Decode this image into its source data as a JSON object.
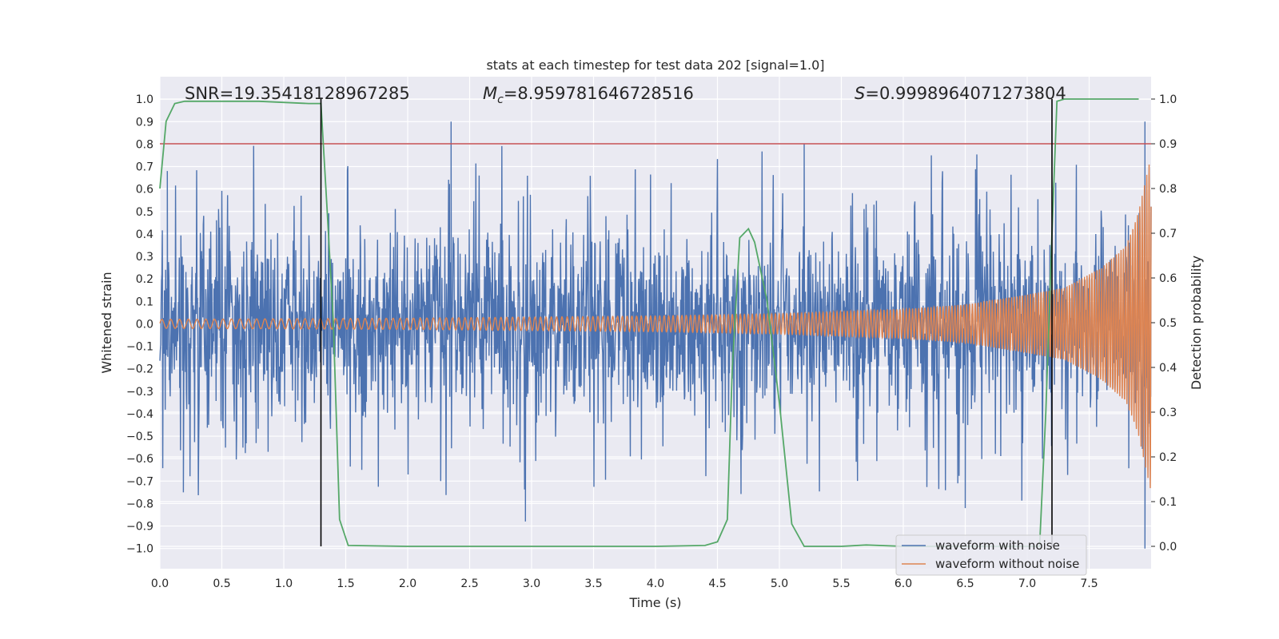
{
  "chart_data": {
    "type": "line",
    "title": "stats at each timestep for test data 202 [signal=1.0]",
    "xlabel": "Time (s)",
    "ylabel": "Whitened strain",
    "y2label": "Detection probability",
    "xlim": [
      0.0,
      8.0
    ],
    "ylim": [
      -1.09,
      1.1
    ],
    "y2lim": [
      -0.05,
      1.05
    ],
    "xticks": [
      0.0,
      0.5,
      1.0,
      1.5,
      2.0,
      2.5,
      3.0,
      3.5,
      4.0,
      4.5,
      5.0,
      5.5,
      6.0,
      6.5,
      7.0,
      7.5
    ],
    "xtick_labels": [
      "0.0",
      "0.5",
      "1.0",
      "1.5",
      "2.0",
      "2.5",
      "3.0",
      "3.5",
      "4.0",
      "4.5",
      "5.0",
      "5.5",
      "6.0",
      "6.5",
      "7.0",
      "7.5"
    ],
    "yticks": [
      1.0,
      0.9,
      0.8,
      0.7,
      0.6,
      0.5,
      0.4,
      0.3,
      0.2,
      0.1,
      0.0,
      -0.1,
      -0.2,
      -0.3,
      -0.4,
      -0.5,
      -0.6,
      -0.7,
      -0.8,
      -0.9,
      -1.0
    ],
    "ytick_labels": [
      "1.0",
      "0.9",
      "0.8",
      "0.7",
      "0.6",
      "0.5",
      "0.4",
      "0.3",
      "0.2",
      "0.1",
      "0.0",
      "−0.1",
      "−0.2",
      "−0.3",
      "−0.4",
      "−0.5",
      "−0.6",
      "−0.7",
      "−0.8",
      "−0.9",
      "−1.0"
    ],
    "y2ticks": [
      1.0,
      0.9,
      0.8,
      0.7,
      0.6,
      0.5,
      0.4,
      0.3,
      0.2,
      0.1,
      0.0
    ],
    "y2tick_labels": [
      "1.0",
      "0.9",
      "0.8",
      "0.7",
      "0.6",
      "0.5",
      "0.4",
      "0.3",
      "0.2",
      "0.1",
      "0.0"
    ],
    "annotations": {
      "snr": "SNR=19.35418128967285",
      "mc_symbol": "M",
      "mc_sub": "c",
      "mc_value": "=8.959781646728516",
      "s_symbol": "S",
      "s_value": "=0.9998964071273804"
    },
    "threshold": {
      "value": 0.9,
      "axis": "y2",
      "color": "#c44e52"
    },
    "vertical_markers": [
      1.3,
      7.2
    ],
    "series": [
      {
        "name": "waveform with noise",
        "color": "#4c72b0",
        "axis": "y",
        "noise_band": [
          -0.38,
          0.38
        ],
        "prominent_spikes": [
          [
            0.06,
            0.68
          ],
          [
            2.35,
            0.9
          ],
          [
            5.2,
            0.8
          ],
          [
            7.95,
            0.9
          ],
          [
            0.19,
            -0.75
          ],
          [
            2.95,
            -0.88
          ],
          [
            6.5,
            -0.82
          ],
          [
            7.95,
            -1.0
          ]
        ]
      },
      {
        "name": "waveform without noise",
        "color": "#dd8452",
        "axis": "y",
        "envelope": {
          "t": [
            0.0,
            2.0,
            4.0,
            5.0,
            6.0,
            6.5,
            7.0,
            7.3,
            7.6,
            7.8,
            7.9,
            8.0
          ],
          "amp": [
            0.02,
            0.025,
            0.035,
            0.045,
            0.065,
            0.085,
            0.13,
            0.16,
            0.25,
            0.35,
            0.5,
            0.75
          ]
        }
      },
      {
        "name": "detection probability",
        "color": "#55a868",
        "axis": "y2",
        "x": [
          0.0,
          0.05,
          0.12,
          0.2,
          0.4,
          0.8,
          1.2,
          1.3,
          1.35,
          1.4,
          1.45,
          1.52,
          2.0,
          3.0,
          4.0,
          4.4,
          4.5,
          4.58,
          4.62,
          4.68,
          4.75,
          4.8,
          4.9,
          5.0,
          5.1,
          5.2,
          5.5,
          5.7,
          6.0,
          6.5,
          7.0,
          7.1,
          7.15,
          7.2,
          7.24,
          7.3,
          7.5,
          7.9
        ],
        "y": [
          0.8,
          0.95,
          0.99,
          0.995,
          0.995,
          0.995,
          0.99,
          0.99,
          0.75,
          0.5,
          0.06,
          0.002,
          0.0,
          0.0,
          0.0,
          0.002,
          0.01,
          0.06,
          0.4,
          0.69,
          0.71,
          0.68,
          0.55,
          0.32,
          0.05,
          0.0,
          0.0,
          0.003,
          0.0,
          0.0,
          0.0,
          0.0,
          0.3,
          0.7,
          0.995,
          1.0,
          1.0,
          1.0
        ]
      }
    ],
    "legend": {
      "position": "lower-right",
      "entries": [
        {
          "label": "waveform with noise",
          "color": "#4c72b0"
        },
        {
          "label": "waveform without noise",
          "color": "#dd8452"
        }
      ]
    }
  }
}
